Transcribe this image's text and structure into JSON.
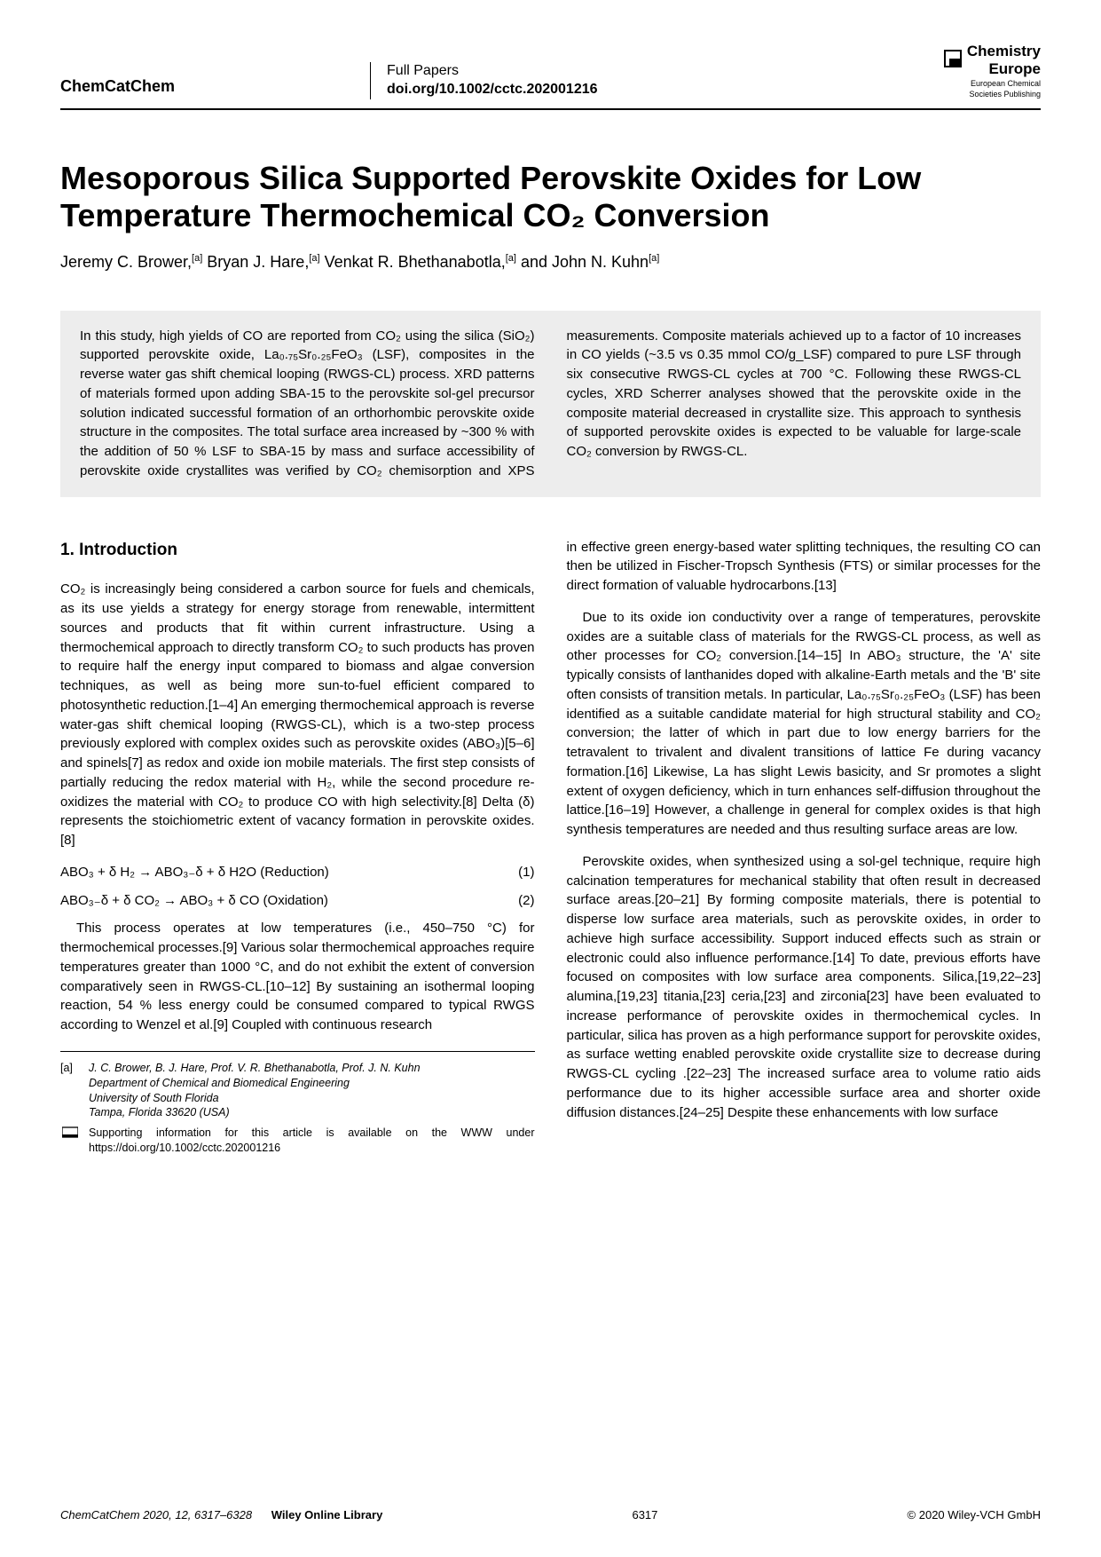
{
  "header": {
    "journal": "ChemCatChem",
    "paper_type": "Full Papers",
    "doi": "doi.org/10.1002/cctc.202001216",
    "publisher_line1": "Chemistry",
    "publisher_line2": "Europe",
    "publisher_sub1": "European Chemical",
    "publisher_sub2": "Societies Publishing"
  },
  "title": "Mesoporous Silica Supported Perovskite Oxides for Low Temperature Thermochemical CO₂ Conversion",
  "authors_html": "Jeremy C. Brower,<span class='sup'>[a]</span> Bryan J. Hare,<span class='sup'>[a]</span> Venkat R. Bhethanabotla,<span class='sup'>[a]</span> and John N. Kuhn<span class='sup'>[a]</span>",
  "abstract": "In this study, high yields of CO are reported from CO₂ using the silica (SiO₂) supported perovskite oxide, La₀.₇₅Sr₀.₂₅FeO₃ (LSF), composites in the reverse water gas shift chemical looping (RWGS-CL) process. XRD patterns of materials formed upon adding SBA-15 to the perovskite sol-gel precursor solution indicated successful formation of an orthorhombic perovskite oxide structure in the composites. The total surface area increased by ~300 % with the addition of 50 % LSF to SBA-15 by mass and surface accessibility of perovskite oxide crystallites was verified by CO₂ chemisorption and XPS measurements. Composite materials achieved up to a factor of 10 increases in CO yields (~3.5 vs 0.35 mmol CO/g_LSF) compared to pure LSF through six consecutive RWGS-CL cycles at 700 °C. Following these RWGS-CL cycles, XRD Scherrer analyses showed that the perovskite oxide in the composite material decreased in crystallite size. This approach to synthesis of supported perovskite oxides is expected to be valuable for large-scale CO₂ conversion by RWGS-CL.",
  "sections": {
    "intro_head": "1. Introduction",
    "p1": "CO₂ is increasingly being considered a carbon source for fuels and chemicals, as its use yields a strategy for energy storage from renewable, intermittent sources and products that fit within current infrastructure. Using a thermochemical approach to directly transform CO₂ to such products has proven to require half the energy input compared to biomass and algae conversion techniques, as well as being more sun-to-fuel efficient compared to photosynthetic reduction.[1–4] An emerging thermochemical approach is reverse water-gas shift chemical looping (RWGS-CL), which is a two-step process previously explored with complex oxides such as perovskite oxides (ABO₃)[5–6] and spinels[7] as redox and oxide ion mobile materials. The first step consists of partially reducing the redox material with H₂, while the second procedure re-oxidizes the material with CO₂ to produce CO with high selectivity.[8] Delta (δ) represents the stoichiometric extent of vacancy formation in perovskite oxides.[8]",
    "eq1_lhs": "ABO₃ + δ H₂ → ABO₃₋δ + δ H2O  (Reduction)",
    "eq1_num": "(1)",
    "eq2_lhs": "ABO₃₋δ + δ CO₂ → ABO₃ + δ CO  (Oxidation)",
    "eq2_num": "(2)",
    "p2": "This process operates at low temperatures (i.e., 450–750 °C) for thermochemical processes.[9] Various solar thermochemical approaches require temperatures greater than 1000 °C, and do not exhibit the extent of conversion comparatively seen in RWGS-CL.[10–12] By sustaining an isothermal looping reaction, 54 % less energy could be consumed compared to typical RWGS according to Wenzel et al.[9] Coupled with continuous research",
    "p3": "in effective green energy-based water splitting techniques, the resulting CO can then be utilized in Fischer-Tropsch Synthesis (FTS) or similar processes for the direct formation of valuable hydrocarbons.[13]",
    "p4": "Due to its oxide ion conductivity over a range of temperatures, perovskite oxides are a suitable class of materials for the RWGS-CL process, as well as other processes for CO₂ conversion.[14–15] In ABO₃ structure, the 'A' site typically consists of lanthanides doped with alkaline-Earth metals and the 'B' site often consists of transition metals. In particular, La₀.₇₅Sr₀.₂₅FeO₃ (LSF) has been identified as a suitable candidate material for high structural stability and CO₂ conversion; the latter of which in part due to low energy barriers for the tetravalent to trivalent and divalent transitions of lattice Fe during vacancy formation.[16] Likewise, La has slight Lewis basicity, and Sr promotes a slight extent of oxygen deficiency, which in turn enhances self-diffusion throughout the lattice.[16–19] However, a challenge in general for complex oxides is that high synthesis temperatures are needed and thus resulting surface areas are low.",
    "p5": "Perovskite oxides, when synthesized using a sol-gel technique, require high calcination temperatures for mechanical stability that often result in decreased surface areas.[20–21] By forming composite materials, there is potential to disperse low surface area materials, such as perovskite oxides, in order to achieve high surface accessibility. Support induced effects such as strain or electronic could also influence performance.[14] To date, previous efforts have focused on composites with low surface area components. Silica,[19,22–23] alumina,[19,23] titania,[23] ceria,[23] and zirconia[23] have been evaluated to increase performance of perovskite oxides in thermochemical cycles. In particular, silica has proven as a high performance support for perovskite oxides, as surface wetting enabled perovskite oxide crystallite size to decrease during RWGS-CL cycling .[22–23] The increased surface area to volume ratio aids performance due to its higher accessible surface area and shorter oxide diffusion distances.[24–25] Despite these enhancements with low surface"
  },
  "affil": {
    "tag": "[a]",
    "names": "J. C. Brower, B. J. Hare, Prof. V. R. Bhethanabotla, Prof. J. N. Kuhn",
    "dept": "Department of Chemical and Biomedical Engineering",
    "univ": "University of South Florida",
    "addr": "Tampa, Florida 33620 (USA)",
    "supp": "Supporting information for this article is available on the WWW under https://doi.org/10.1002/cctc.202001216"
  },
  "footer": {
    "cite": "ChemCatChem 2020, 12, 6317–6328",
    "wol": "Wiley Online Library",
    "page": "6317",
    "copyright": "© 2020 Wiley-VCH GmbH"
  },
  "colors": {
    "abstract_bg": "#ededed",
    "text": "#000000",
    "rule": "#000000"
  }
}
